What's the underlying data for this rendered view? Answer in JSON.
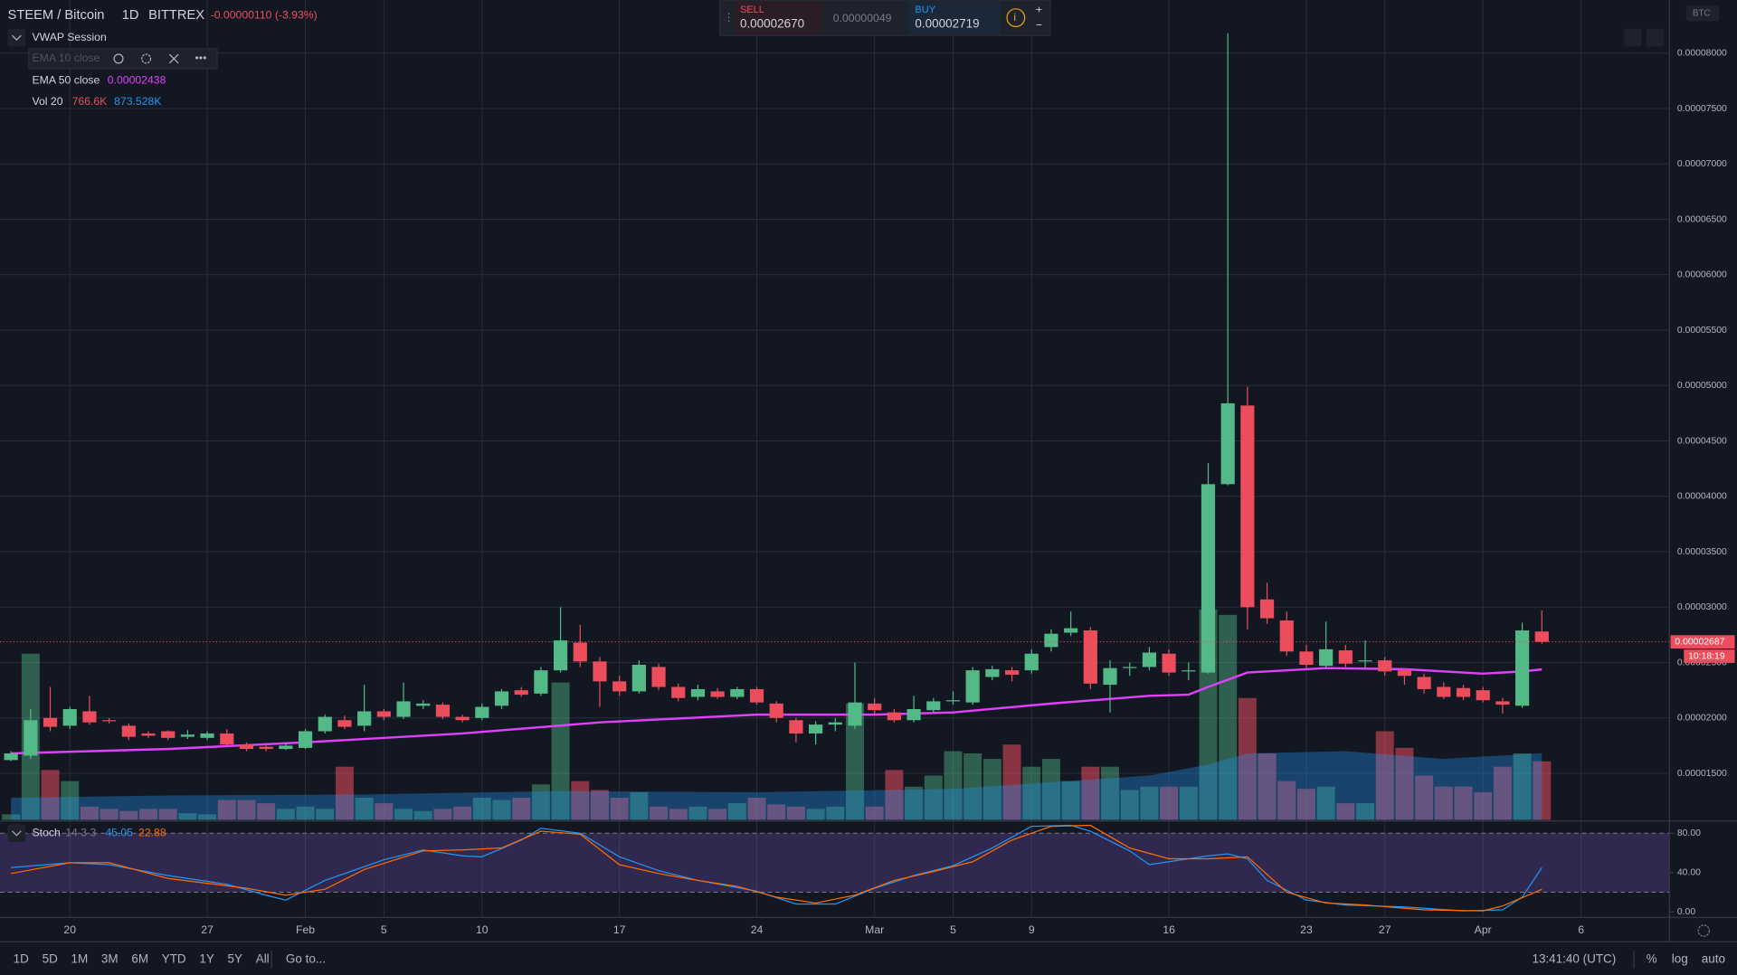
{
  "toolbar": {
    "symbol": "STEEM / Bitcoin",
    "interval": "1D",
    "exchange": "BITTREX",
    "change": "-0.00000110 (-3.93%)"
  },
  "trade_panel": {
    "sell_label": "SELL",
    "sell_price": "0.00002670",
    "spread": "0.00000049",
    "buy_label": "BUY",
    "buy_price": "0.00002719"
  },
  "indicators": {
    "vwap": "VWAP Session",
    "ema10": "EMA 10 close"
  },
  "chart_data": {
    "type": "candlestick",
    "currency": "BTC",
    "countdown": "10:18:19",
    "up_color": "#53b987",
    "down_color": "#eb4d5c",
    "x": [
      -3,
      -2,
      -1,
      0,
      1,
      2,
      3,
      4,
      5,
      6,
      7,
      8,
      9,
      10,
      11,
      12,
      13,
      14,
      15,
      16,
      17,
      18,
      19,
      20,
      21,
      22,
      23,
      24,
      25,
      26,
      27,
      28,
      29,
      30,
      31,
      32,
      33,
      34,
      35,
      36,
      37,
      38,
      39,
      40,
      41,
      42,
      43,
      44,
      45,
      46,
      47,
      48,
      49,
      50,
      51,
      52,
      53,
      54,
      55,
      56,
      57,
      58,
      59,
      60,
      61,
      62,
      63,
      64,
      65,
      66,
      67,
      68,
      69,
      70,
      71,
      72,
      73,
      74,
      75
    ],
    "xlim": [
      -3.56,
      81.5
    ],
    "xticks": [
      {
        "value": 0,
        "label": "20"
      },
      {
        "value": 7,
        "label": "27"
      },
      {
        "value": 12,
        "label": "Feb"
      },
      {
        "value": 16,
        "label": "5"
      },
      {
        "value": 21,
        "label": "10"
      },
      {
        "value": 28,
        "label": "17"
      },
      {
        "value": 35,
        "label": "24"
      },
      {
        "value": 41,
        "label": "Mar"
      },
      {
        "value": 45,
        "label": "5"
      },
      {
        "value": 49,
        "label": "9"
      },
      {
        "value": 56,
        "label": "16"
      },
      {
        "value": 63,
        "label": "23"
      },
      {
        "value": 67,
        "label": "27"
      },
      {
        "value": 72,
        "label": "Apr"
      },
      {
        "value": 77,
        "label": "6"
      }
    ],
    "ylim": [
      1.08e-05,
      8.48e-05
    ],
    "yticks": [
      {
        "value": 1.5e-05,
        "label": "0.00001500"
      },
      {
        "value": 2e-05,
        "label": "0.00002000"
      },
      {
        "value": 2.5e-05,
        "label": "0.00002500"
      },
      {
        "value": 3e-05,
        "label": "0.00003000"
      },
      {
        "value": 3.5e-05,
        "label": "0.00003500"
      },
      {
        "value": 4e-05,
        "label": "0.00004000"
      },
      {
        "value": 4.5e-05,
        "label": "0.00004500"
      },
      {
        "value": 5e-05,
        "label": "0.00005000"
      },
      {
        "value": 5.5e-05,
        "label": "0.00005500"
      },
      {
        "value": 6e-05,
        "label": "0.00006000"
      },
      {
        "value": 6.5e-05,
        "label": "0.00006500"
      },
      {
        "value": 7e-05,
        "label": "0.00007000"
      },
      {
        "value": 7.5e-05,
        "label": "0.00007500"
      },
      {
        "value": 8e-05,
        "label": "0.00008000"
      }
    ],
    "open": [
      1.62e-05,
      1.66e-05,
      2e-05,
      1.93e-05,
      2.06e-05,
      1.98e-05,
      1.93e-05,
      1.86e-05,
      1.88e-05,
      1.83e-05,
      1.82e-05,
      1.86e-05,
      1.76e-05,
      1.74e-05,
      1.72e-05,
      1.73e-05,
      1.88e-05,
      1.98e-05,
      1.93e-05,
      2.06e-05,
      2.01e-05,
      2.11e-05,
      2.12e-05,
      2.01e-05,
      2e-05,
      2.11e-05,
      2.25e-05,
      2.22e-05,
      2.43e-05,
      2.68e-05,
      2.51e-05,
      2.33e-05,
      2.24e-05,
      2.46e-05,
      2.28e-05,
      2.19e-05,
      2.24e-05,
      2.19e-05,
      2.26e-05,
      2.13e-05,
      1.98e-05,
      1.86e-05,
      1.94e-05,
      1.93e-05,
      2.13e-05,
      2.05e-05,
      1.98e-05,
      2.07e-05,
      2.15e-05,
      2.14e-05,
      2.37e-05,
      2.43e-05,
      2.43e-05,
      2.64e-05,
      2.77e-05,
      2.79e-05,
      2.3e-05,
      2.45e-05,
      2.46e-05,
      2.58e-05,
      2.42e-05,
      2.41e-05,
      4.11e-05,
      4.82e-05,
      3.07e-05,
      2.88e-05,
      2.6e-05,
      2.47e-05,
      2.61e-05,
      2.51e-05,
      2.52e-05,
      2.43e-05,
      2.37e-05,
      2.28e-05,
      2.27e-05,
      2.25e-05,
      2.15e-05,
      2.11e-05,
      2.78e-05
    ],
    "high": [
      1.7e-05,
      2.08e-05,
      2.28e-05,
      2.1e-05,
      2.2e-05,
      2e-05,
      1.95e-05,
      1.88e-05,
      1.89e-05,
      1.89e-05,
      1.88e-05,
      1.9e-05,
      1.78e-05,
      1.76e-05,
      1.77e-05,
      1.9e-05,
      2.03e-05,
      2.02e-05,
      2.3e-05,
      2.08e-05,
      2.32e-05,
      2.16e-05,
      2.14e-05,
      2.03e-05,
      2.13e-05,
      2.26e-05,
      2.28e-05,
      2.46e-05,
      3e-05,
      2.84e-05,
      2.55e-05,
      2.38e-05,
      2.52e-05,
      2.49e-05,
      2.31e-05,
      2.3e-05,
      2.27e-05,
      2.28e-05,
      2.28e-05,
      2.15e-05,
      2e-05,
      1.97e-05,
      2e-05,
      2.5e-05,
      2.18e-05,
      2.08e-05,
      2.2e-05,
      2.18e-05,
      2.24e-05,
      2.46e-05,
      2.47e-05,
      2.46e-05,
      2.62e-05,
      2.8e-05,
      2.96e-05,
      2.82e-05,
      2.52e-05,
      2.5e-05,
      2.64e-05,
      2.62e-05,
      2.5e-05,
      4.3e-05,
      8.18e-05,
      4.99e-05,
      3.22e-05,
      2.96e-05,
      2.66e-05,
      2.87e-05,
      2.66e-05,
      2.7e-05,
      2.55e-05,
      2.45e-05,
      2.4e-05,
      2.32e-05,
      2.3e-05,
      2.28e-05,
      2.18e-05,
      2.86e-05,
      2.97e-05
    ],
    "low": [
      1.61e-05,
      1.63e-05,
      1.88e-05,
      1.9e-05,
      1.94e-05,
      1.95e-05,
      1.8e-05,
      1.82e-05,
      1.8e-05,
      1.81e-05,
      1.8e-05,
      1.74e-05,
      1.7e-05,
      1.7e-05,
      1.71e-05,
      1.72e-05,
      1.86e-05,
      1.9e-05,
      1.88e-05,
      1.98e-05,
      1.99e-05,
      2.08e-05,
      1.99e-05,
      1.96e-05,
      1.98e-05,
      2.08e-05,
      2.19e-05,
      2.2e-05,
      2.41e-05,
      2.46e-05,
      2.1e-05,
      2.2e-05,
      2.22e-05,
      2.25e-05,
      2.15e-05,
      2.16e-05,
      2.17e-05,
      2.17e-05,
      2.12e-05,
      1.96e-05,
      1.78e-05,
      1.76e-05,
      1.88e-05,
      1.9e-05,
      2.03e-05,
      1.96e-05,
      1.96e-05,
      2.05e-05,
      2.12e-05,
      2.12e-05,
      2.34e-05,
      2.33e-05,
      2.4e-05,
      2.6e-05,
      2.74e-05,
      2.26e-05,
      2.05e-05,
      2.38e-05,
      2.43e-05,
      2.38e-05,
      2.34e-05,
      2.4e-05,
      4.1e-05,
      2.8e-05,
      2.85e-05,
      2.56e-05,
      2.45e-05,
      2.45e-05,
      2.46e-05,
      2.45e-05,
      2.38e-05,
      2.3e-05,
      2.22e-05,
      2.17e-05,
      2.16e-05,
      2.14e-05,
      2.04e-05,
      2.09e-05,
      2.67e-05
    ],
    "close": [
      1.68e-05,
      1.98e-05,
      1.92e-05,
      2.08e-05,
      1.96e-05,
      1.97e-05,
      1.83e-05,
      1.84e-05,
      1.82e-05,
      1.85e-05,
      1.86e-05,
      1.76e-05,
      1.72e-05,
      1.72e-05,
      1.75e-05,
      1.88e-05,
      2.01e-05,
      1.92e-05,
      2.06e-05,
      2.01e-05,
      2.15e-05,
      2.13e-05,
      2.01e-05,
      1.98e-05,
      2.1e-05,
      2.24e-05,
      2.21e-05,
      2.43e-05,
      2.7e-05,
      2.51e-05,
      2.33e-05,
      2.24e-05,
      2.48e-05,
      2.28e-05,
      2.18e-05,
      2.26e-05,
      2.19e-05,
      2.26e-05,
      2.14e-05,
      2e-05,
      1.86e-05,
      1.94e-05,
      1.96e-05,
      2.14e-05,
      2.07e-05,
      1.98e-05,
      2.08e-05,
      2.15e-05,
      2.16e-05,
      2.43e-05,
      2.44e-05,
      2.39e-05,
      2.58e-05,
      2.76e-05,
      2.81e-05,
      2.31e-05,
      2.45e-05,
      2.46e-05,
      2.59e-05,
      2.41e-05,
      2.43e-05,
      4.11e-05,
      4.84e-05,
      3e-05,
      2.9e-05,
      2.6e-05,
      2.48e-05,
      2.62e-05,
      2.49e-05,
      2.52e-05,
      2.42e-05,
      2.38e-05,
      2.26e-05,
      2.19e-05,
      2.19e-05,
      2.16e-05,
      2.12e-05,
      2.79e-05,
      2.687e-05
    ],
    "ema": {
      "name": "EMA 50 close",
      "color": "#e040fb",
      "x": [
        -3,
        5,
        12,
        20,
        27,
        35,
        41,
        45,
        50,
        55,
        57,
        58,
        60,
        64,
        68,
        72,
        74,
        75
      ],
      "values": [
        1.68e-05,
        1.72e-05,
        1.78e-05,
        1.86e-05,
        1.96e-05,
        2.03e-05,
        2.03e-05,
        2.05e-05,
        2.13e-05,
        2.2e-05,
        2.21e-05,
        2.28e-05,
        2.41e-05,
        2.45e-05,
        2.44e-05,
        2.4e-05,
        2.42e-05,
        2.438e-05
      ]
    },
    "volume": {
      "name": "Vol 20",
      "ylim": [
        0,
        10730000
      ],
      "last_label": "766.6K",
      "values": [
        72500,
        2175000,
        652500,
        507500,
        174000,
        145000,
        116000,
        145000,
        145000,
        87000,
        72500,
        261000,
        261000,
        217500,
        145000,
        174000,
        145000,
        696000,
        290000,
        217500,
        145000,
        116000,
        145000,
        174000,
        290000,
        261000,
        290000,
        464000,
        1798000,
        507500,
        391500,
        290000,
        362500,
        174000,
        145000,
        174000,
        145000,
        217500,
        290000,
        203000,
        174000,
        145000,
        174000,
        1522500,
        174000,
        652500,
        435000,
        580000,
        899000,
        870000,
        797500,
        986000,
        696000,
        797500,
        507500,
        696000,
        696000,
        391500,
        435000,
        435000,
        435000,
        2755000,
        2682500,
        1595000,
        870000,
        507500,
        406000,
        435000,
        217500,
        217500,
        1160000,
        942500,
        580000,
        435000,
        435000,
        362500,
        696000,
        870000,
        766600
      ]
    },
    "volume_ma": {
      "color": "#2196f3",
      "last_label": "873.528K",
      "x": [
        -3,
        5,
        15,
        25,
        35,
        45,
        55,
        58,
        60,
        65,
        70,
        75
      ],
      "values": [
        290000,
        319000,
        333500,
        377000,
        362500,
        406000,
        580000,
        725000,
        870000,
        899000,
        797500,
        873528
      ]
    },
    "stoch": {
      "name": "Stoch",
      "params": "14 3 3",
      "ylim": [
        -5.6,
        91.3
      ],
      "band": [
        20,
        80
      ],
      "yticks": [
        {
          "value": 80,
          "label": "80.00"
        },
        {
          "value": 40,
          "label": "40.00"
        },
        {
          "value": 0,
          "label": "0.00"
        }
      ],
      "k": {
        "color": "#2196f3",
        "x": [
          -3,
          0,
          2,
          5,
          8,
          10,
          11,
          13,
          16,
          18,
          20,
          21,
          23,
          24,
          26,
          28,
          30,
          32,
          35,
          37,
          39,
          41,
          43,
          45,
          47,
          49,
          51,
          52,
          54,
          55,
          57,
          58,
          59,
          60,
          61,
          63,
          65,
          68,
          71,
          73,
          74,
          75
        ],
        "values": [
          45,
          50,
          48,
          37,
          28,
          17,
          12,
          32,
          53,
          63,
          57,
          56,
          73,
          85,
          80,
          56,
          42,
          32,
          21,
          8,
          8,
          24,
          37,
          47,
          65,
          87,
          88,
          82,
          62,
          48,
          54,
          57,
          59,
          54,
          32,
          12,
          7,
          5,
          1,
          2,
          15,
          45.05
        ]
      },
      "d": {
        "color": "#ff6d00",
        "x": [
          -3,
          0,
          2,
          5,
          9,
          11,
          13,
          15,
          18,
          20,
          22,
          24,
          26,
          28,
          30,
          32,
          34,
          36,
          38,
          40,
          42,
          44,
          46,
          48,
          50,
          52,
          54,
          56,
          58,
          60,
          62,
          64,
          66,
          69,
          72,
          73,
          75
        ],
        "values": [
          39,
          50,
          50,
          34,
          24,
          17,
          23,
          43,
          62,
          63,
          65,
          82,
          79,
          48,
          39,
          32,
          26,
          15,
          9,
          17,
          32,
          41,
          51,
          73,
          87,
          88,
          65,
          54,
          54,
          56,
          20,
          9,
          7,
          2,
          1,
          6,
          22.88
        ]
      }
    }
  },
  "bottom_bar": {
    "ranges": [
      "1D",
      "5D",
      "1M",
      "3M",
      "6M",
      "YTD",
      "1Y",
      "5Y",
      "All"
    ],
    "goto": "Go to...",
    "clock": "13:41:40 (UTC)",
    "percent": "%",
    "log": "log",
    "auto": "auto"
  }
}
